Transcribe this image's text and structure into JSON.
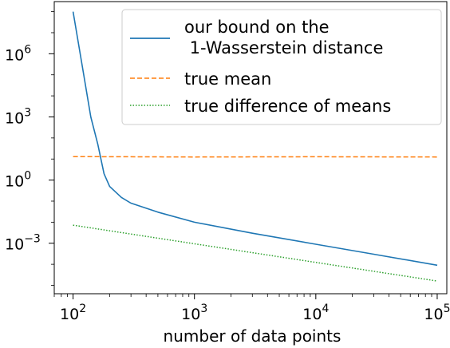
{
  "chart_data": {
    "type": "line",
    "xlabel": "number of data points",
    "ylabel": "",
    "xscale": "log",
    "yscale": "log",
    "xlim": [
      70,
      120000
    ],
    "ylim": [
      4e-06,
      300000000
    ],
    "grid": false,
    "legend_position": "top-right",
    "x_ticks": [
      {
        "value": 100,
        "base": "10",
        "exp": "2"
      },
      {
        "value": 1000,
        "base": "10",
        "exp": "3"
      },
      {
        "value": 10000,
        "base": "10",
        "exp": "4"
      },
      {
        "value": 100000,
        "base": "10",
        "exp": "5"
      }
    ],
    "y_ticks": [
      {
        "value": 0.001,
        "base": "10",
        "exp": "−3"
      },
      {
        "value": 1,
        "base": "10",
        "exp": "0"
      },
      {
        "value": 1000,
        "base": "10",
        "exp": "3"
      },
      {
        "value": 1000000,
        "base": "10",
        "exp": "6"
      }
    ],
    "series": [
      {
        "name": "our bound on the\n 1-Wasserstein distance",
        "color": "#1f77b4",
        "style": "solid",
        "x": [
          100,
          120,
          140,
          160,
          180,
          200,
          250,
          300,
          500,
          1000,
          3000,
          10000,
          30000,
          100000
        ],
        "y": [
          100000000,
          200000,
          1000,
          50,
          2,
          0.5,
          0.15,
          0.08,
          0.03,
          0.01,
          0.003,
          0.0009,
          0.0003,
          9e-05
        ]
      },
      {
        "name": "true mean",
        "color": "#ff7f0e",
        "style": "dashed",
        "x": [
          100,
          1000,
          10000,
          100000
        ],
        "y": [
          13,
          12.5,
          12.8,
          12.5
        ]
      },
      {
        "name": "true difference of means",
        "color": "#2ca02c",
        "style": "dotted",
        "x": [
          100,
          100000
        ],
        "y": [
          0.0072,
          1.6e-05
        ]
      }
    ]
  }
}
